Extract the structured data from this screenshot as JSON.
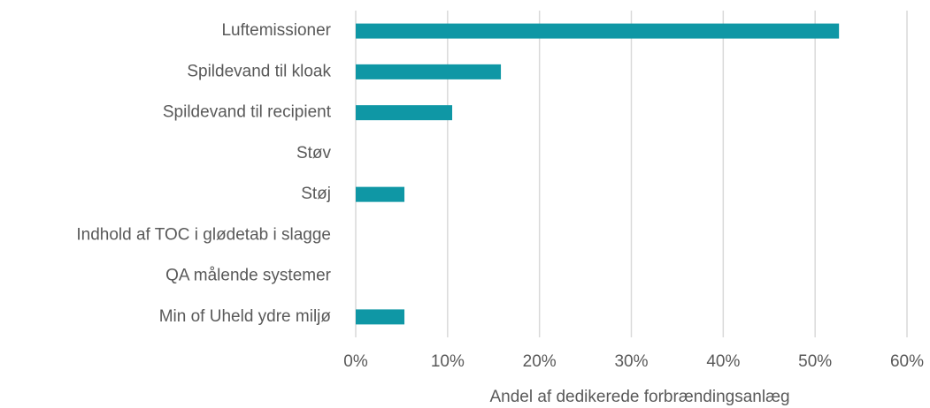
{
  "chart_data": {
    "type": "hbar",
    "categories": [
      "Luftemissioner",
      "Spildevand til kloak",
      "Spildevand til recipient",
      "Støv",
      "Støj",
      "Indhold af TOC i glødetab i slagge",
      "QA målende systemer",
      "Min of Uheld ydre miljø"
    ],
    "values": [
      52.6,
      15.8,
      10.5,
      0,
      5.3,
      0,
      0,
      5.3
    ],
    "color": "#0f97a5",
    "xlabel": "Andel af dedikerede forbrændingsanlæg",
    "xlim": [
      0,
      60
    ],
    "xticks": [
      {
        "value": 0,
        "label": "0%"
      },
      {
        "value": 10,
        "label": "10%"
      },
      {
        "value": 20,
        "label": "20%"
      },
      {
        "value": 30,
        "label": "30%"
      },
      {
        "value": 40,
        "label": "40%"
      },
      {
        "value": 50,
        "label": "50%"
      },
      {
        "value": 60,
        "label": "60%"
      }
    ],
    "grid": true
  }
}
